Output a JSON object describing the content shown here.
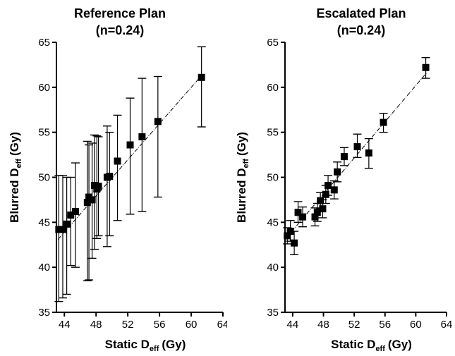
{
  "chart_data": [
    {
      "type": "scatter",
      "title": "Reference Plan",
      "subtitle": "(n=0.24)",
      "xlabel_main": "Static D",
      "xlabel_sub": "eff",
      "xlabel_unit": "(Gy)",
      "ylabel_main": "Blurred D",
      "ylabel_sub": "eff",
      "ylabel_unit": "(Gy)",
      "xlim": [
        43,
        64
      ],
      "ylim": [
        35,
        65
      ],
      "xticks": [
        44,
        48,
        52,
        56,
        60,
        64
      ],
      "yticks": [
        35,
        40,
        45,
        50,
        55,
        60,
        65
      ],
      "fit_line": [
        [
          43.2,
          43.1
        ],
        [
          61.4,
          61.4
        ]
      ],
      "points": [
        {
          "x": 43.3,
          "y": 44.2,
          "lo": 36.2,
          "hi": 50.2
        },
        {
          "x": 43.8,
          "y": 44.2,
          "lo": 36.6,
          "hi": 50.2
        },
        {
          "x": 44.3,
          "y": 44.8,
          "lo": 37.0,
          "hi": 50.0
        },
        {
          "x": 44.8,
          "y": 45.8,
          "lo": 40.2,
          "hi": 50.0
        },
        {
          "x": 45.4,
          "y": 46.2,
          "lo": 40.0,
          "hi": 51.6
        },
        {
          "x": 46.9,
          "y": 47.2,
          "lo": 38.5,
          "hi": 54.0
        },
        {
          "x": 47.1,
          "y": 47.8,
          "lo": 38.6,
          "hi": 53.6
        },
        {
          "x": 47.5,
          "y": 47.5,
          "lo": 41.0,
          "hi": 53.8
        },
        {
          "x": 47.8,
          "y": 49.1,
          "lo": 42.0,
          "hi": 54.7
        },
        {
          "x": 48.1,
          "y": 48.7,
          "lo": 43.2,
          "hi": 54.6
        },
        {
          "x": 48.3,
          "y": 49.0,
          "lo": 43.5,
          "hi": 54.5
        },
        {
          "x": 49.4,
          "y": 50.0,
          "lo": 42.3,
          "hi": 55.7
        },
        {
          "x": 49.7,
          "y": 50.1,
          "lo": 43.5,
          "hi": 55.0
        },
        {
          "x": 50.7,
          "y": 51.8,
          "lo": 45.2,
          "hi": 56.9
        },
        {
          "x": 52.3,
          "y": 53.6,
          "lo": 45.9,
          "hi": 58.8
        },
        {
          "x": 53.8,
          "y": 54.5,
          "lo": 46.2,
          "hi": 61.0
        },
        {
          "x": 55.8,
          "y": 56.2,
          "lo": 47.8,
          "hi": 61.2
        },
        {
          "x": 61.3,
          "y": 61.1,
          "lo": 55.6,
          "hi": 64.5
        }
      ]
    },
    {
      "type": "scatter",
      "title": "Escalated Plan",
      "subtitle": "(n=0.24)",
      "xlabel_main": "Static D",
      "xlabel_sub": "eff",
      "xlabel_unit": "(Gy)",
      "ylabel_main": "Blurred D",
      "ylabel_sub": "eff",
      "ylabel_unit": "(Gy)",
      "xlim": [
        43,
        64
      ],
      "ylim": [
        35,
        65
      ],
      "xticks": [
        44,
        48,
        52,
        56,
        60,
        64
      ],
      "yticks": [
        35,
        40,
        45,
        50,
        55,
        60,
        65
      ],
      "fit_line": [
        [
          43.2,
          43.3
        ],
        [
          61.4,
          61.6
        ]
      ],
      "points": [
        {
          "x": 43.3,
          "y": 43.5,
          "lo": 42.6,
          "hi": 44.4
        },
        {
          "x": 43.7,
          "y": 44.0,
          "lo": 42.9,
          "hi": 45.2
        },
        {
          "x": 44.2,
          "y": 42.7,
          "lo": 41.4,
          "hi": 44.0
        },
        {
          "x": 44.7,
          "y": 46.1,
          "lo": 45.0,
          "hi": 47.3
        },
        {
          "x": 45.3,
          "y": 45.6,
          "lo": 44.5,
          "hi": 46.7
        },
        {
          "x": 46.9,
          "y": 45.6,
          "lo": 44.6,
          "hi": 46.6
        },
        {
          "x": 47.2,
          "y": 46.1,
          "lo": 45.1,
          "hi": 47.1
        },
        {
          "x": 47.6,
          "y": 47.4,
          "lo": 46.5,
          "hi": 48.3
        },
        {
          "x": 47.9,
          "y": 46.5,
          "lo": 45.5,
          "hi": 47.5
        },
        {
          "x": 48.3,
          "y": 48.1,
          "lo": 47.1,
          "hi": 49.1
        },
        {
          "x": 48.6,
          "y": 49.1,
          "lo": 48.0,
          "hi": 50.2
        },
        {
          "x": 49.4,
          "y": 48.6,
          "lo": 47.6,
          "hi": 49.6
        },
        {
          "x": 49.8,
          "y": 50.6,
          "lo": 49.5,
          "hi": 51.7
        },
        {
          "x": 50.7,
          "y": 52.3,
          "lo": 51.3,
          "hi": 53.3
        },
        {
          "x": 52.4,
          "y": 53.4,
          "lo": 52.2,
          "hi": 54.8
        },
        {
          "x": 53.9,
          "y": 52.7,
          "lo": 51.0,
          "hi": 54.3
        },
        {
          "x": 55.8,
          "y": 56.1,
          "lo": 55.0,
          "hi": 57.1
        },
        {
          "x": 61.3,
          "y": 62.2,
          "lo": 61.0,
          "hi": 63.3
        }
      ]
    }
  ]
}
